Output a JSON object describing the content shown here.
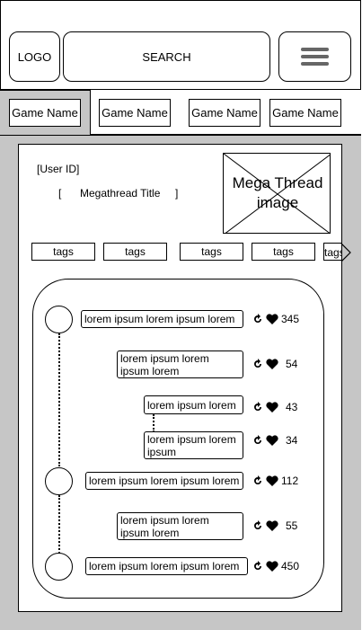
{
  "header": {
    "logo_label": "LOGO",
    "search_label": "SEARCH",
    "menu_icon": "hamburger-menu-icon"
  },
  "game_tabs": [
    "Game Name",
    "Game Name",
    "Game Name",
    "Game Name"
  ],
  "thread": {
    "user_id": "[User ID]",
    "title_open": "[",
    "title": "Megathread Title",
    "title_close": "]",
    "image_label_line1": "Mega Thread",
    "image_label_line2": "image"
  },
  "tags": [
    "tags",
    "tags",
    "tags",
    "tags",
    "tags"
  ],
  "tags_next_icon": "chevron-right-icon",
  "posts": [
    {
      "text_line1": "lorem ipsum lorem ipsum lorem",
      "text_line2": "",
      "likes": "345"
    },
    {
      "text_line1": "lorem ipsum lorem ipsum",
      "text_line2": "lorem",
      "likes": "54"
    },
    {
      "text_line1": "lorem ipsum lorem",
      "text_line2": "",
      "likes": "43"
    },
    {
      "text_line1": "lorem ipsum lorem",
      "text_line2": "ipsum",
      "likes": "34"
    },
    {
      "text_line1": "lorem ipsum lorem ipsum lorem",
      "text_line2": "",
      "likes": "112"
    },
    {
      "text_line1": "lorem ipsum lorem ipsum",
      "text_line2": "lorem",
      "likes": "55"
    },
    {
      "text_line1": "lorem ipsum lorem ipsum lorem",
      "text_line2": "",
      "likes": "450"
    }
  ],
  "icons": {
    "share": "share-arrow-icon",
    "like": "heart-icon"
  }
}
